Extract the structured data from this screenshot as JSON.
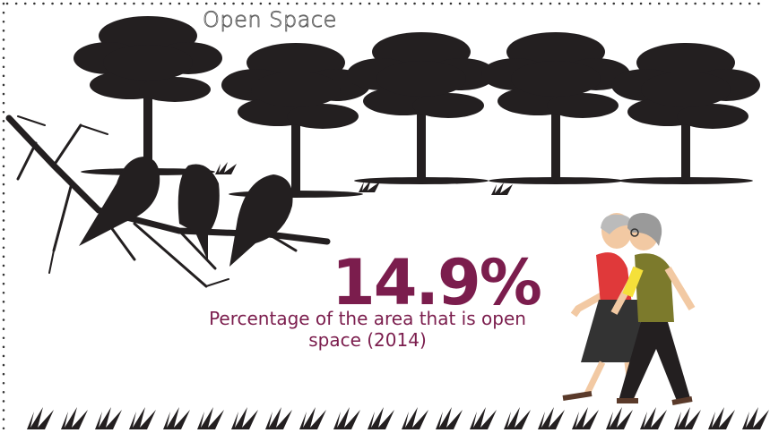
{
  "title": "Open Space",
  "statistic": {
    "value": "14.9%",
    "description": "Percentage of the area that is open space (2014)"
  }
}
